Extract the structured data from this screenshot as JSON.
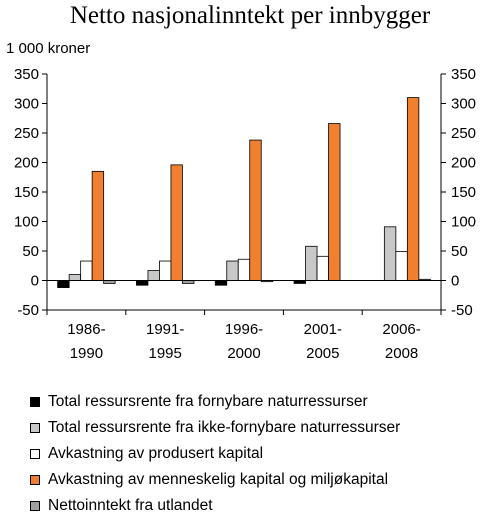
{
  "chart_data": {
    "type": "bar",
    "title": "Netto nasjonalinntekt per innbygger",
    "ylabel": "1 000 kroner",
    "ylim": [
      -50,
      350
    ],
    "yticks": [
      "350",
      "300",
      "250",
      "200",
      "150",
      "100",
      "50",
      "0",
      "-50"
    ],
    "categories": [
      [
        "1986-",
        "1990"
      ],
      [
        "1991-",
        "1995"
      ],
      [
        "1996-",
        "2000"
      ],
      [
        "2001-",
        "2005"
      ],
      [
        "2006-",
        "2008"
      ]
    ],
    "series": [
      {
        "name": "Total ressursrente fra fornybare naturressurser",
        "color": "#000000",
        "values": [
          -12,
          -8,
          -8,
          -5,
          0
        ]
      },
      {
        "name": "Total ressursrente fra ikke-fornybare naturressurser",
        "color": "#c8c8c8",
        "values": [
          10,
          17,
          33,
          58,
          91
        ]
      },
      {
        "name": "Avkastning av produsert kapital",
        "color": "#ffffff",
        "values": [
          33,
          33,
          36,
          41,
          49
        ]
      },
      {
        "name": "Avkastning av menneskelig kapital og miljøkapital",
        "color": "#f08030",
        "values": [
          185,
          196,
          238,
          266,
          310
        ]
      },
      {
        "name": "Nettoinntekt fra utlandet",
        "color": "#a0a0a0",
        "values": [
          -5,
          -5,
          -2,
          0,
          2
        ]
      }
    ],
    "grid": false,
    "legend": "bottom"
  }
}
